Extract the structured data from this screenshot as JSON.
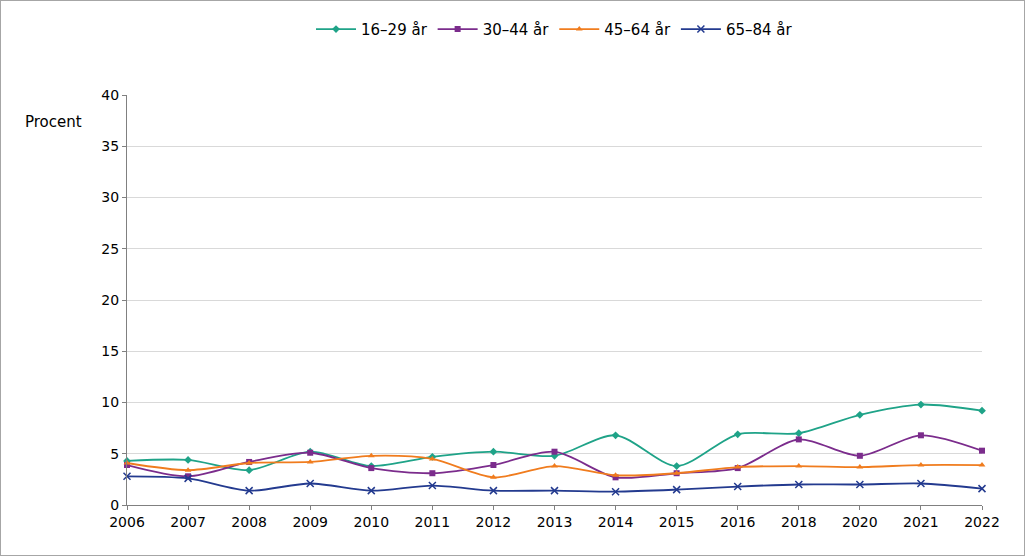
{
  "chart_data": {
    "type": "line",
    "y_label": "Procent",
    "categories": [
      "2006",
      "2007",
      "2008",
      "2009",
      "2010",
      "2011",
      "2012",
      "2013",
      "2014",
      "2015",
      "2016",
      "2018",
      "2020",
      "2021",
      "2022"
    ],
    "series": [
      {
        "name": "16–29 år",
        "color": "#1fa388",
        "marker": "diamond",
        "values": [
          4.3,
          4.4,
          3.4,
          5.2,
          3.8,
          4.7,
          5.2,
          4.8,
          6.8,
          3.8,
          6.9,
          7.0,
          8.8,
          9.8,
          9.2
        ]
      },
      {
        "name": "30–44 år",
        "color": "#7b2c8c",
        "marker": "square",
        "values": [
          3.9,
          2.8,
          4.2,
          5.1,
          3.6,
          3.1,
          3.9,
          5.2,
          2.7,
          3.1,
          3.6,
          6.4,
          4.8,
          6.8,
          5.3
        ]
      },
      {
        "name": "45–64 år",
        "color": "#f07c1e",
        "marker": "triangle-up",
        "values": [
          4.1,
          3.4,
          4.1,
          4.2,
          4.8,
          4.5,
          2.7,
          3.8,
          2.9,
          3.1,
          3.7,
          3.8,
          3.7,
          3.9,
          3.9
        ]
      },
      {
        "name": "65–84 år",
        "color": "#233a8f",
        "marker": "x-thin",
        "values": [
          2.8,
          2.6,
          1.4,
          2.1,
          1.4,
          1.9,
          1.4,
          1.4,
          1.3,
          1.5,
          1.8,
          2.0,
          2.0,
          2.1,
          1.6
        ]
      }
    ],
    "ylim": [
      0,
      40
    ],
    "yticks": [
      0,
      5,
      10,
      15,
      20,
      25,
      30,
      35,
      40
    ],
    "grid": true,
    "legend": "top"
  }
}
